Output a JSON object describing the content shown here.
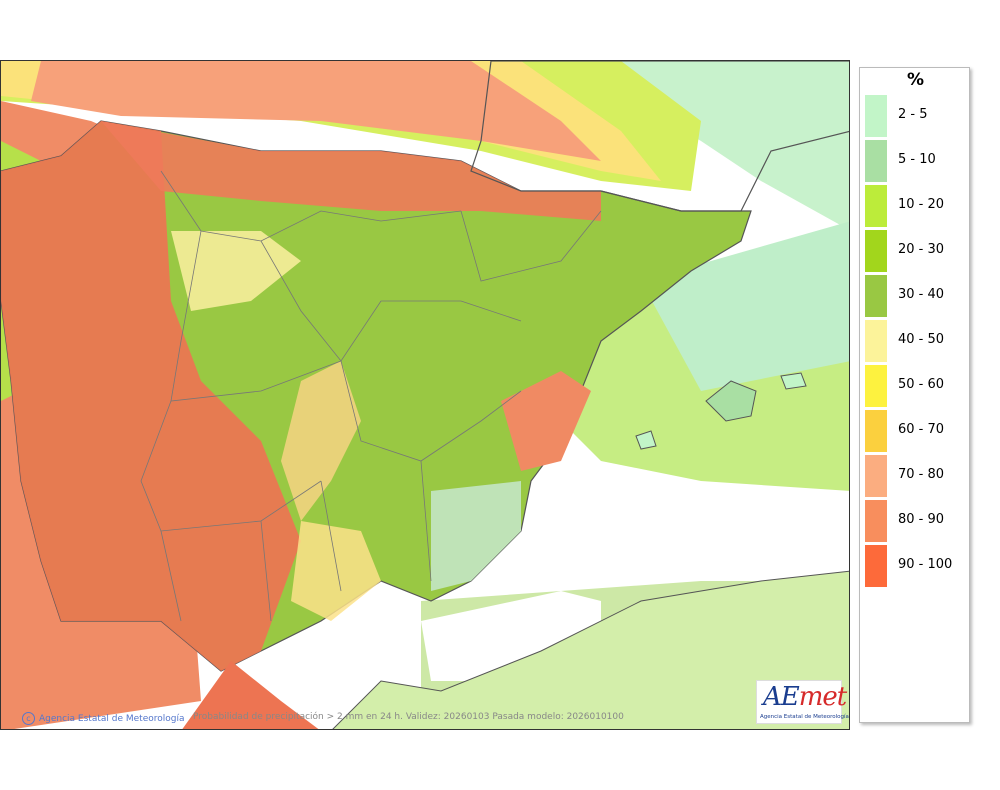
{
  "legend": {
    "unit": "%",
    "items": [
      {
        "label": "2 - 5",
        "color": "#c2f5c8"
      },
      {
        "label": "5 - 10",
        "color": "#a9dfa3"
      },
      {
        "label": "10 - 20",
        "color": "#bcec3a"
      },
      {
        "label": "20 - 30",
        "color": "#a2d61c"
      },
      {
        "label": "30 - 40",
        "color": "#99c843"
      },
      {
        "label": "40 - 50",
        "color": "#fcf39a"
      },
      {
        "label": "50 - 60",
        "color": "#fdf23f"
      },
      {
        "label": "60 - 70",
        "color": "#fbd03e"
      },
      {
        "label": "70 - 80",
        "color": "#fbad80"
      },
      {
        "label": "80 - 90",
        "color": "#f88e5d"
      },
      {
        "label": "90 - 100",
        "color": "#fd6a3a"
      }
    ]
  },
  "credit": "Agencia Estatal de Meteorología",
  "caption": "Probabilidad de precipitación > 2 mm en 24 h. Validez: 20260103 Pasada modelo: 2026010100",
  "logo": {
    "text_a": "AE",
    "text_m": "met",
    "subtitle": "Agencia Estatal de Meteorología"
  },
  "colors": {
    "sea_clear": "#ffffff",
    "land_base": "#99c843",
    "high_prob": "#f0896a",
    "very_high": "#ed7452",
    "coast_line": "#555555",
    "province_line": "#888888"
  }
}
